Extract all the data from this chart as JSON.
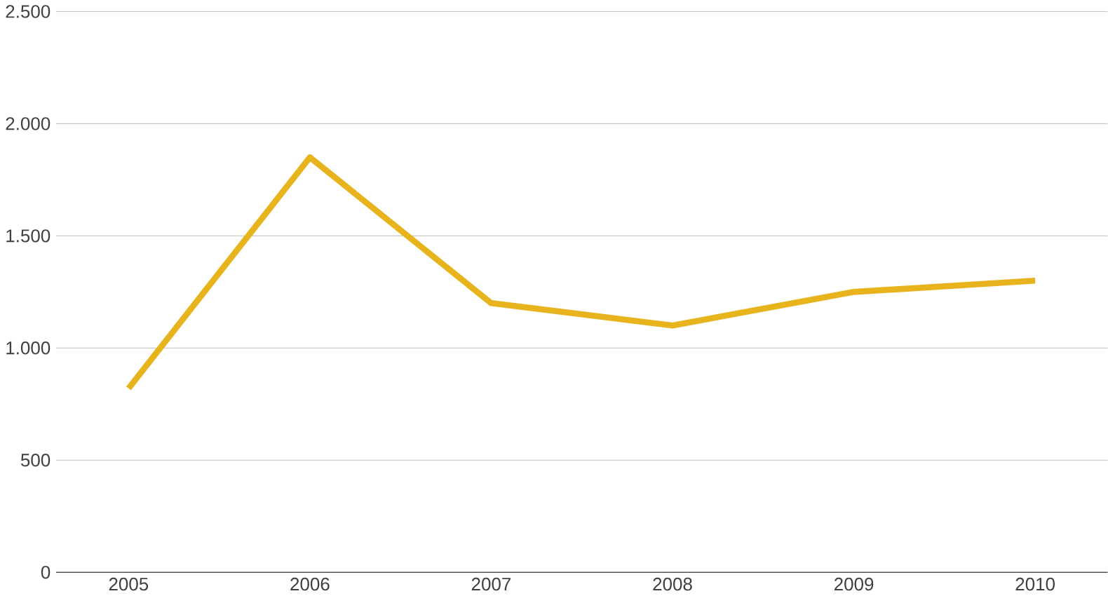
{
  "chart_data": {
    "type": "line",
    "categories": [
      "2005",
      "2006",
      "2007",
      "2008",
      "2009",
      "2010"
    ],
    "values": [
      820,
      1850,
      1200,
      1100,
      1250,
      1300
    ],
    "color": "#e8b41e",
    "ylim": [
      0,
      2500
    ],
    "yticks": [
      {
        "value": 0,
        "label": "0"
      },
      {
        "value": 500,
        "label": "500"
      },
      {
        "value": 1000,
        "label": "1.000"
      },
      {
        "value": 1500,
        "label": "1.500"
      },
      {
        "value": 2000,
        "label": "2.000"
      },
      {
        "value": 2500,
        "label": "2.500"
      }
    ],
    "grid": "y",
    "marker": "none",
    "line_style": "solid"
  }
}
